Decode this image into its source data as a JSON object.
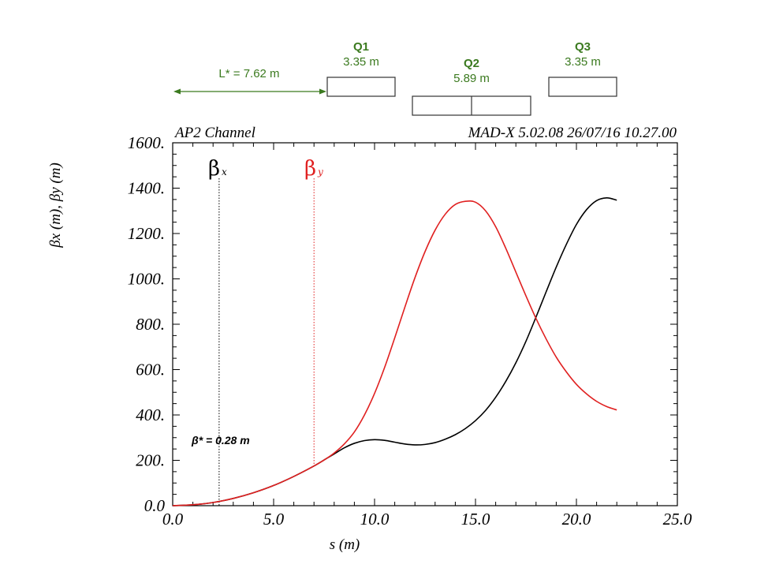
{
  "colors": {
    "beta_x": "#000000",
    "beta_y": "#e02020",
    "magnet_label": "#3b7a1f",
    "axis": "#000000"
  },
  "header": {
    "left": "AP2 Channel",
    "right": "MAD-X 5.02.08  26/07/16 10.27.00"
  },
  "lattice": {
    "drift_label": "L* = 7.62 m",
    "magnets": [
      {
        "name": "Q1",
        "length": "3.35 m"
      },
      {
        "name": "Q2",
        "length": "5.89 m"
      },
      {
        "name": "Q3",
        "length": "3.35 m"
      }
    ]
  },
  "annotations": {
    "beta_x_symbol": "β",
    "beta_x_sub": "x",
    "beta_y_symbol": "β",
    "beta_y_sub": "y",
    "beta_star": "β* = 0.28 m",
    "beta_x_marker_s": 2.3,
    "beta_y_marker_s": 7.0
  },
  "chart_data": {
    "type": "line",
    "title": "AP2 Channel",
    "xlabel": "s (m)",
    "ylabel": "βx (m), βy (m)",
    "xlim": [
      0.0,
      25.0
    ],
    "ylim": [
      0.0,
      1600.0
    ],
    "xticks": [
      "0.0",
      "5.0",
      "10.0",
      "15.0",
      "20.0",
      "25.0"
    ],
    "yticks": [
      "0.0",
      "200.",
      "400.",
      "600.",
      "800.",
      "1000.",
      "1200.",
      "1400.",
      "1600."
    ],
    "series": [
      {
        "name": "βx",
        "color": "#000000",
        "x": [
          0,
          1,
          2,
          3,
          4,
          5,
          6,
          7,
          7.62,
          8,
          8.5,
          9,
          9.5,
          10,
          10.5,
          11,
          11.5,
          12,
          12.5,
          13,
          13.5,
          14,
          14.5,
          15,
          15.5,
          16,
          16.5,
          17,
          17.5,
          18,
          18.5,
          19,
          19.5,
          20,
          20.5,
          21,
          21.5,
          22
        ],
        "y": [
          0.3,
          4,
          14,
          32,
          57,
          89,
          129,
          175,
          208,
          228,
          255,
          275,
          287,
          291,
          288,
          280,
          272,
          268,
          270,
          278,
          293,
          313,
          340,
          375,
          420,
          478,
          548,
          630,
          725,
          832,
          943,
          1052,
          1152,
          1240,
          1305,
          1345,
          1357,
          1347
        ]
      },
      {
        "name": "βy",
        "color": "#e02020",
        "x": [
          0,
          1,
          2,
          3,
          4,
          5,
          6,
          7,
          7.62,
          8,
          8.5,
          9,
          9.5,
          10,
          10.5,
          11,
          11.5,
          12,
          12.5,
          13,
          13.5,
          14,
          14.5,
          15,
          15.5,
          16,
          16.5,
          17,
          17.5,
          18,
          18.5,
          19,
          19.5,
          20,
          20.5,
          21,
          21.5,
          22
        ],
        "y": [
          0.3,
          4,
          14,
          32,
          57,
          89,
          129,
          175,
          208,
          232,
          272,
          325,
          400,
          495,
          610,
          740,
          875,
          1005,
          1120,
          1215,
          1285,
          1328,
          1342,
          1338,
          1300,
          1230,
          1135,
          1030,
          925,
          825,
          735,
          655,
          590,
          535,
          493,
          460,
          437,
          422
        ]
      }
    ]
  }
}
